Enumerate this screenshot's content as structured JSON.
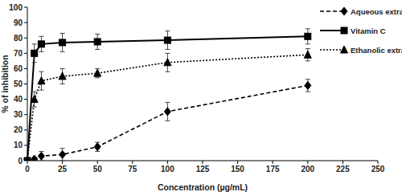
{
  "chart_data": {
    "type": "line",
    "x_label": "Concentration (µg/mL)",
    "y_label": "% of inhibition",
    "x": [
      0,
      5,
      10,
      25,
      50,
      100,
      200
    ],
    "series": [
      {
        "name": "Aqueous extract",
        "color": "#000000",
        "line_style": "dashed",
        "marker": "diamond",
        "values": [
          0,
          1,
          3,
          4,
          9,
          32,
          49
        ],
        "errors": [
          1,
          1,
          3,
          4,
          3,
          6,
          4
        ]
      },
      {
        "name": "Vitamin C",
        "color": "#000000",
        "line_style": "solid",
        "marker": "square",
        "values": [
          0,
          70,
          76,
          77,
          77.5,
          78.5,
          81
        ],
        "errors": [
          1,
          6,
          5,
          6,
          5,
          6,
          5
        ]
      },
      {
        "name": "Ethanolic extract",
        "color": "#000000",
        "line_style": "dotted",
        "marker": "triangle",
        "values": [
          0,
          40,
          52,
          55,
          57,
          64,
          69
        ],
        "errors": [
          1,
          5,
          6,
          5,
          3,
          6,
          4
        ]
      }
    ],
    "xlim": [
      0,
      250
    ],
    "xticks": [
      0,
      25,
      50,
      75,
      100,
      125,
      150,
      175,
      200,
      225,
      250
    ],
    "ylim": [
      0,
      100
    ],
    "yticks": [
      0,
      10,
      20,
      30,
      40,
      50,
      60,
      70,
      80,
      90,
      100
    ],
    "grid": false,
    "legend": "right"
  }
}
